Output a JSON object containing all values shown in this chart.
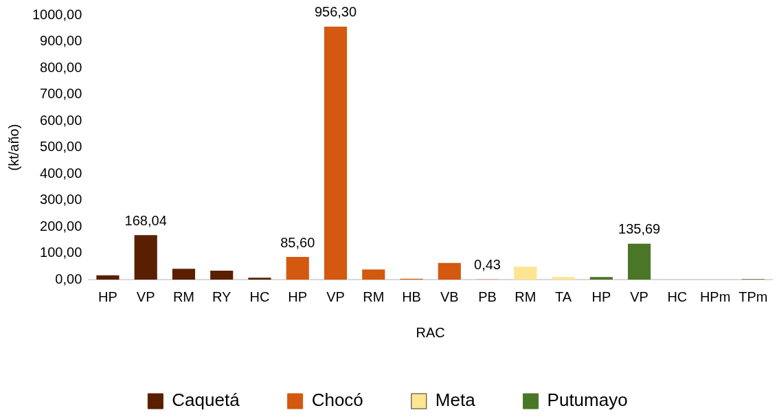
{
  "chart_data": {
    "type": "bar",
    "xlabel": "RAC",
    "ylabel": "(kt/año)",
    "categories": [
      "HP",
      "VP",
      "RM",
      "RY",
      "HC",
      "HP",
      "VP",
      "RM",
      "HB",
      "VB",
      "PB",
      "RM",
      "TA",
      "HP",
      "VP",
      "HC",
      "HPm",
      "TPm"
    ],
    "series": [
      {
        "name": "Caquetá",
        "color": "#5a1f00",
        "values": [
          16,
          168.04,
          41,
          34,
          7,
          null,
          null,
          null,
          null,
          null,
          null,
          null,
          null,
          null,
          null,
          null,
          null,
          null
        ],
        "value_labels": [
          null,
          "168,04",
          null,
          null,
          null,
          null,
          null,
          null,
          null,
          null,
          null,
          null,
          null,
          null,
          null,
          null,
          null,
          null
        ]
      },
      {
        "name": "Chocó",
        "color": "#d4580f",
        "values": [
          null,
          null,
          null,
          null,
          null,
          85.6,
          956.3,
          38,
          3,
          63,
          0.43,
          null,
          null,
          null,
          null,
          null,
          null,
          null
        ],
        "value_labels": [
          null,
          null,
          null,
          null,
          null,
          "85,60",
          "956,30",
          null,
          null,
          null,
          "0,43",
          null,
          null,
          null,
          null,
          null,
          null,
          null
        ]
      },
      {
        "name": "Meta",
        "color": "#fde591",
        "values": [
          null,
          null,
          null,
          null,
          null,
          null,
          null,
          null,
          null,
          null,
          null,
          49,
          10,
          null,
          null,
          null,
          null,
          null
        ],
        "value_labels": [
          null,
          null,
          null,
          null,
          null,
          null,
          null,
          null,
          null,
          null,
          null,
          null,
          null,
          null,
          null,
          null,
          null,
          null
        ]
      },
      {
        "name": "Putumayo",
        "color": "#4a7628",
        "values": [
          null,
          null,
          null,
          null,
          null,
          null,
          null,
          null,
          null,
          null,
          null,
          null,
          null,
          10,
          135.69,
          0,
          0,
          2
        ],
        "value_labels": [
          null,
          null,
          null,
          null,
          null,
          null,
          null,
          null,
          null,
          null,
          null,
          null,
          null,
          null,
          "135,69",
          null,
          null,
          null
        ]
      }
    ],
    "ylim": [
      0,
      1000
    ],
    "yticks": [
      {
        "value": 0,
        "label": "0,00"
      },
      {
        "value": 100,
        "label": "100,00"
      },
      {
        "value": 200,
        "label": "200,00"
      },
      {
        "value": 300,
        "label": "300,00"
      },
      {
        "value": 400,
        "label": "400,00"
      },
      {
        "value": 500,
        "label": "500,00"
      },
      {
        "value": 600,
        "label": "600,00"
      },
      {
        "value": 700,
        "label": "700,00"
      },
      {
        "value": 800,
        "label": "800,00"
      },
      {
        "value": 900,
        "label": "900,00"
      },
      {
        "value": 1000,
        "label": "1000,00"
      }
    ],
    "grid": false,
    "legend": "bottom"
  }
}
